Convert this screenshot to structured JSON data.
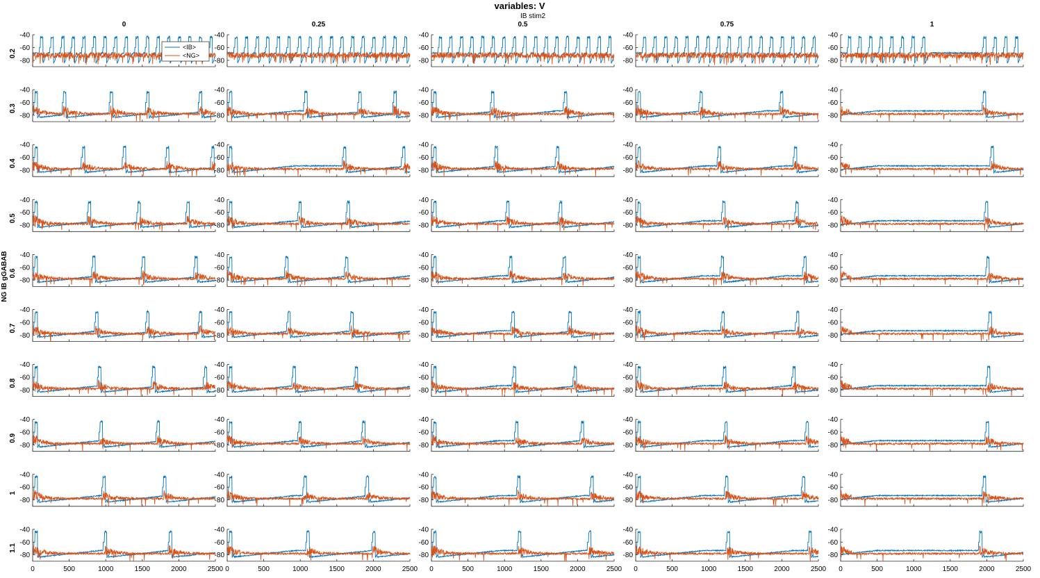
{
  "chart_data": {
    "type": "line",
    "title": "variables: V",
    "subtitle": "IB stim2",
    "ylabel": "NG IB gGABAB",
    "col_values": [
      "0",
      "0.25",
      "0.5",
      "0.75",
      "1"
    ],
    "row_values": [
      "0.2",
      "0.3",
      "0.4",
      "0.5",
      "0.6",
      "0.7",
      "0.8",
      "0.9",
      "1",
      "1.1"
    ],
    "xlim": [
      0,
      2500
    ],
    "ylim": [
      -90,
      -40
    ],
    "xticks": [
      0,
      500,
      1000,
      1500,
      2000,
      2500
    ],
    "xtick_labels": [
      "0",
      "500",
      "1000",
      "1500",
      "2000",
      "2500"
    ],
    "yticks": [
      -40,
      -60,
      -80
    ],
    "ytick_labels": [
      "-40",
      "-60",
      "-80"
    ],
    "legend": {
      "position": "top-left of first panel",
      "entries": [
        "<IB>",
        "<NG>"
      ]
    },
    "series": [
      {
        "name": "<IB>",
        "color": "#0072BD",
        "description": "mean IB membrane potential, bursts reaching -40 mV"
      },
      {
        "name": "<NG>",
        "color": "#D95319",
        "description": "mean NG membrane potential, noisy around -70 to -80 mV"
      }
    ],
    "ib_burst_times": [
      [
        [
          105,
          250,
          395,
          540,
          685,
          830,
          975,
          1120,
          1265,
          1410,
          1555,
          1700,
          1845,
          1990,
          2135,
          2280,
          2425
        ],
        [
          105,
          250,
          395,
          540,
          685,
          830,
          975,
          1120,
          1265,
          1410,
          1555,
          1700,
          1845,
          1990,
          2135,
          2280,
          2425
        ],
        [
          105,
          250,
          395,
          540,
          685,
          830,
          975,
          1120,
          1265,
          1410,
          1555,
          1700,
          1845,
          1990,
          2135,
          2280,
          2425
        ],
        [
          105,
          250,
          395,
          540,
          685,
          830,
          975,
          1120,
          1265,
          1410,
          1555,
          1700,
          1845,
          1990,
          2135,
          2280,
          2425
        ],
        [
          105,
          250,
          395,
          540,
          685,
          830,
          975,
          1120,
          1955,
          2100,
          2245,
          2390
        ]
      ],
      [
        [
          30,
          420,
          1060,
          1560,
          2280
        ],
        [
          30,
          1060,
          1800,
          2280
        ],
        [
          30,
          820,
          1820
        ],
        [
          30,
          880,
          1980
        ],
        [
          1950
        ]
      ],
      [
        [
          30,
          680,
          1240,
          1830,
          2450
        ],
        [
          30,
          1590,
          2400
        ],
        [
          30,
          870,
          1710
        ],
        [
          30,
          1130,
          2170
        ],
        [
          2060
        ]
      ],
      [
        [
          30,
          760,
          1440,
          2110
        ],
        [
          30,
          980,
          1640
        ],
        [
          30,
          1030,
          1750
        ],
        [
          30,
          1190,
          2190
        ],
        [
          1980
        ]
      ],
      [
        [
          30,
          820,
          1500,
          2220
        ],
        [
          30,
          800,
          1620
        ],
        [
          30,
          1070,
          1800
        ],
        [
          30,
          1170,
          2300
        ],
        [
          2000
        ]
      ],
      [
        [
          30,
          860,
          1560,
          2280
        ],
        [
          30,
          830,
          1690
        ],
        [
          30,
          1100,
          1880
        ],
        [
          30,
          1180,
          2200
        ],
        [
          2030
        ]
      ],
      [
        [
          30,
          900,
          1640,
          2350
        ],
        [
          30,
          900,
          1750
        ],
        [
          30,
          1120,
          1950
        ],
        [
          30,
          1200,
          2150
        ],
        [
          2010
        ]
      ],
      [
        [
          30,
          920,
          1700
        ],
        [
          30,
          980,
          1850
        ],
        [
          30,
          1150,
          2050
        ],
        [
          30,
          1220,
          2330
        ],
        [
          1990
        ]
      ],
      [
        [
          30,
          960,
          1790
        ],
        [
          30,
          1050,
          1900
        ],
        [
          30,
          1180,
          2180
        ],
        [
          30,
          1230,
          2280
        ],
        [
          1950
        ]
      ],
      [
        [
          30,
          980,
          1870
        ],
        [
          30,
          1090,
          1990
        ],
        [
          30,
          1190,
          2150
        ],
        [
          30,
          1250,
          2370
        ],
        [
          1900
        ]
      ]
    ]
  }
}
